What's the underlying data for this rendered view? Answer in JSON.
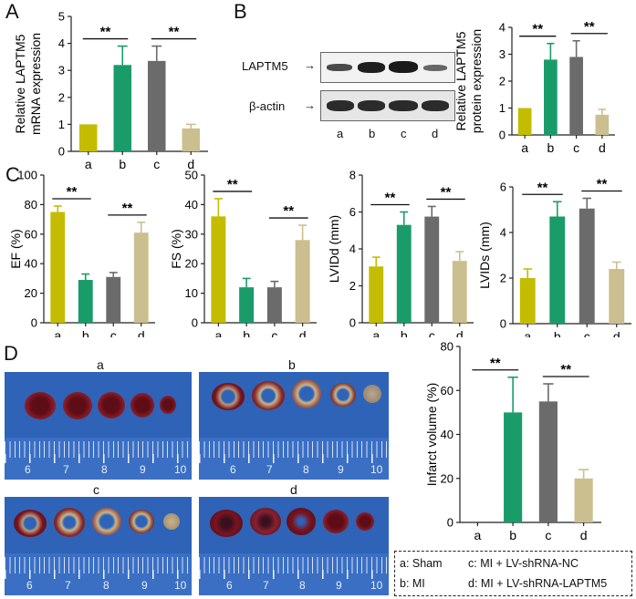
{
  "panels": {
    "A": "A",
    "B": "B",
    "C": "C",
    "D": "D"
  },
  "blot": {
    "band_labels": [
      "LAPTM5",
      "β-actin"
    ],
    "lane_labels": [
      "a",
      "b",
      "c",
      "d"
    ]
  },
  "photos": {
    "labels": [
      "a",
      "b",
      "c",
      "d"
    ],
    "ruler_numbers": [
      "6",
      "7",
      "8",
      "9",
      "10"
    ]
  },
  "legend": {
    "a": "a: Sham",
    "b": "b: MI",
    "c": "c: MI + LV-shRNA-NC",
    "d": "d: MI + LV-shRNA-LAPTM5"
  },
  "colors": {
    "a": "#c4bc00",
    "b": "#1a9b6a",
    "c": "#6b6b6b",
    "d": "#cbbf8f",
    "photo_bg": "#2e63b8",
    "tissue_red": "#7a1420",
    "tissue_pale": "#c9b58a"
  },
  "chart_data": [
    {
      "id": "A",
      "type": "bar",
      "categories": [
        "a",
        "b",
        "c",
        "d"
      ],
      "values": [
        1.0,
        3.2,
        3.35,
        0.85
      ],
      "errors": [
        0,
        0.7,
        0.55,
        0.15
      ],
      "ylabel": "Relative LAPTM5 mRNA expression",
      "ylim": [
        0,
        5
      ],
      "yticks": [
        "0",
        "1",
        "2",
        "3",
        "4",
        "5"
      ],
      "significance": [
        {
          "from": 0,
          "to": 1,
          "label": "**"
        },
        {
          "from": 2,
          "to": 3,
          "label": "**"
        }
      ]
    },
    {
      "id": "B",
      "type": "bar",
      "categories": [
        "a",
        "b",
        "c",
        "d"
      ],
      "values": [
        1.0,
        2.8,
        2.9,
        0.75
      ],
      "errors": [
        0,
        0.6,
        0.6,
        0.2
      ],
      "ylabel": "Relative LAPTM5 protein expression",
      "ylim": [
        0,
        4
      ],
      "yticks": [
        "0",
        "1",
        "2",
        "3",
        "4"
      ],
      "significance": [
        {
          "from": 0,
          "to": 1,
          "label": "**"
        },
        {
          "from": 2,
          "to": 3,
          "label": "**"
        }
      ]
    },
    {
      "id": "C1",
      "type": "bar",
      "categories": [
        "a",
        "b",
        "c",
        "d"
      ],
      "values": [
        75,
        29,
        31,
        61
      ],
      "errors": [
        4,
        4,
        3,
        7
      ],
      "ylabel": "EF (%)",
      "ylim": [
        0,
        100
      ],
      "yticks": [
        "0",
        "20",
        "40",
        "60",
        "80",
        "100"
      ],
      "significance": [
        {
          "from": 0,
          "to": 1,
          "label": "**"
        },
        {
          "from": 2,
          "to": 3,
          "label": "**"
        }
      ]
    },
    {
      "id": "C2",
      "type": "bar",
      "categories": [
        "a",
        "b",
        "c",
        "d"
      ],
      "values": [
        36,
        12,
        12,
        28
      ],
      "errors": [
        6,
        3,
        2,
        5
      ],
      "ylabel": "FS (%)",
      "ylim": [
        0,
        50
      ],
      "yticks": [
        "0",
        "10",
        "20",
        "30",
        "40",
        "50"
      ],
      "significance": [
        {
          "from": 0,
          "to": 1,
          "label": "**"
        },
        {
          "from": 2,
          "to": 3,
          "label": "**"
        }
      ]
    },
    {
      "id": "C3",
      "type": "bar",
      "categories": [
        "a",
        "b",
        "c",
        "d"
      ],
      "values": [
        3.05,
        5.3,
        5.75,
        3.35
      ],
      "errors": [
        0.5,
        0.7,
        0.55,
        0.5
      ],
      "ylabel": "LVIDd (mm)",
      "ylim": [
        0,
        8
      ],
      "yticks": [
        "0",
        "2",
        "4",
        "6",
        "8"
      ],
      "significance": [
        {
          "from": 0,
          "to": 1,
          "label": "**"
        },
        {
          "from": 2,
          "to": 3,
          "label": "**"
        }
      ]
    },
    {
      "id": "C4",
      "type": "bar",
      "categories": [
        "a",
        "b",
        "c",
        "d"
      ],
      "values": [
        2.0,
        4.7,
        5.05,
        2.4
      ],
      "errors": [
        0.4,
        0.65,
        0.45,
        0.3
      ],
      "ylabel": "LVIDs (mm)",
      "ylim": [
        0,
        6
      ],
      "yticks": [
        "0",
        "2",
        "4",
        "6"
      ],
      "significance": [
        {
          "from": 0,
          "to": 1,
          "label": "**"
        },
        {
          "from": 2,
          "to": 3,
          "label": "**"
        }
      ]
    },
    {
      "id": "D",
      "type": "bar",
      "categories": [
        "a",
        "b",
        "c",
        "d"
      ],
      "values": [
        0,
        50,
        55,
        20
      ],
      "errors": [
        0,
        16,
        8,
        4
      ],
      "ylabel": "Infarct volume (%)",
      "ylim": [
        0,
        80
      ],
      "yticks": [
        "0",
        "20",
        "40",
        "60",
        "80"
      ],
      "significance": [
        {
          "from": 0,
          "to": 1,
          "label": "**"
        },
        {
          "from": 2,
          "to": 3,
          "label": "**"
        }
      ]
    }
  ]
}
